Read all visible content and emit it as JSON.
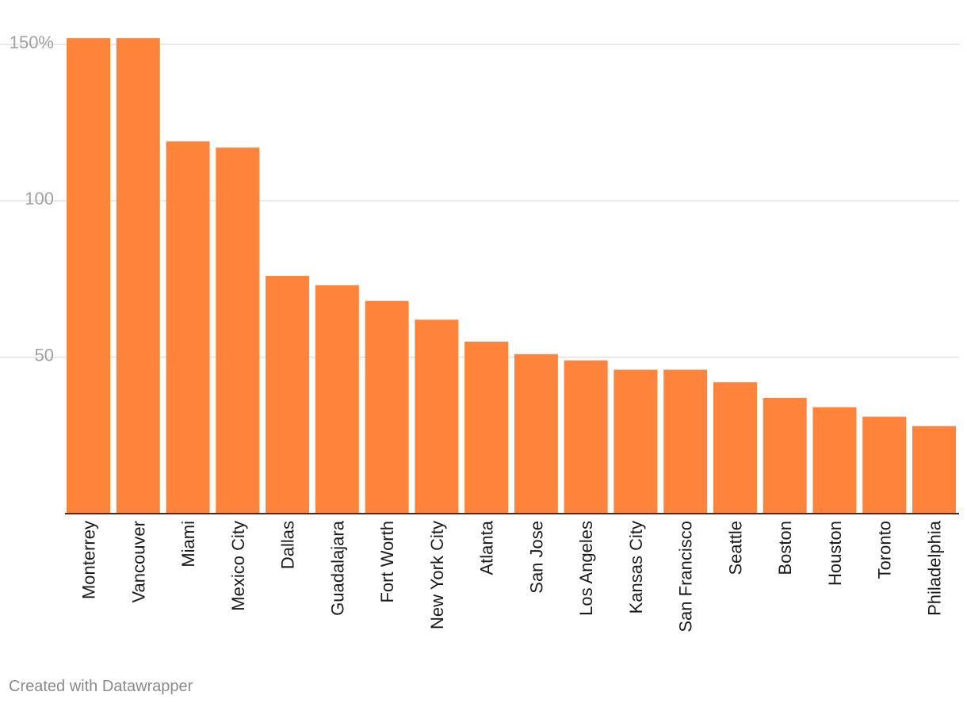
{
  "chart_data": {
    "type": "bar",
    "categories": [
      "Monterrey",
      "Vancouver",
      "Miami",
      "Mexico City",
      "Dallas",
      "Guadalajara",
      "Fort Worth",
      "New York City",
      "Atlanta",
      "San Jose",
      "Los Angeles",
      "Kansas City",
      "San Francisco",
      "Seattle",
      "Boston",
      "Houston",
      "Toronto",
      "Philadelphia"
    ],
    "values": [
      152,
      152,
      119,
      117,
      76,
      73,
      68,
      62,
      55,
      51,
      49,
      46,
      46,
      42,
      37,
      34,
      31,
      28
    ],
    "ylim": [
      0,
      150
    ],
    "yticks": [
      50,
      100,
      150
    ],
    "ytick_labels": [
      "50",
      "100",
      "150%"
    ],
    "grid": true,
    "colors": {
      "bar": "#fd843a",
      "grid": "#e0e0e0",
      "baseline": "#333333",
      "tick_label": "#a0a0a0",
      "category_label": "#1a1a1a"
    }
  },
  "footer": {
    "credit": "Created with Datawrapper"
  }
}
